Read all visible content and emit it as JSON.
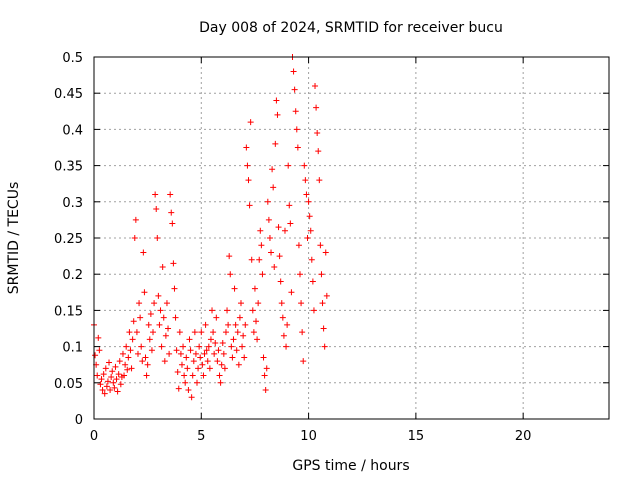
{
  "chart_data": {
    "type": "scatter",
    "title": "Day 008 of 2024, SRMTID for receiver bucu",
    "xlabel": "GPS time / hours",
    "ylabel": "SRMTID / TECUs",
    "xlim": [
      0,
      24
    ],
    "ylim": [
      0,
      0.5
    ],
    "xticks": [
      0,
      5,
      10,
      15,
      20
    ],
    "yticks": [
      0,
      0.05,
      0.1,
      0.15,
      0.2,
      0.25,
      0.3,
      0.35,
      0.4,
      0.45,
      0.5
    ],
    "xtick_labels": [
      "0",
      "5",
      "10",
      "15",
      "20"
    ],
    "ytick_labels": [
      "0",
      "0.05",
      "0.1",
      "0.15",
      "0.2",
      "0.25",
      "0.3",
      "0.35",
      "0.4",
      "0.45",
      "0.5"
    ],
    "grid": true,
    "marker": "plus",
    "color": "#ff0000",
    "points": [
      [
        0.0,
        0.13
      ],
      [
        0.05,
        0.088
      ],
      [
        0.1,
        0.075
      ],
      [
        0.15,
        0.06
      ],
      [
        0.2,
        0.112
      ],
      [
        0.25,
        0.095
      ],
      [
        0.3,
        0.048
      ],
      [
        0.35,
        0.055
      ],
      [
        0.4,
        0.04
      ],
      [
        0.45,
        0.062
      ],
      [
        0.5,
        0.035
      ],
      [
        0.55,
        0.07
      ],
      [
        0.6,
        0.045
      ],
      [
        0.65,
        0.052
      ],
      [
        0.7,
        0.078
      ],
      [
        0.75,
        0.04
      ],
      [
        0.8,
        0.058
      ],
      [
        0.85,
        0.066
      ],
      [
        0.9,
        0.05
      ],
      [
        0.95,
        0.043
      ],
      [
        1.0,
        0.072
      ],
      [
        1.05,
        0.055
      ],
      [
        1.1,
        0.038
      ],
      [
        1.15,
        0.062
      ],
      [
        1.2,
        0.08
      ],
      [
        1.25,
        0.048
      ],
      [
        1.3,
        0.058
      ],
      [
        1.35,
        0.09
      ],
      [
        1.4,
        0.06
      ],
      [
        1.45,
        0.075
      ],
      [
        1.5,
        0.1
      ],
      [
        1.55,
        0.068
      ],
      [
        1.6,
        0.085
      ],
      [
        1.65,
        0.12
      ],
      [
        1.7,
        0.095
      ],
      [
        1.75,
        0.07
      ],
      [
        1.8,
        0.11
      ],
      [
        1.85,
        0.135
      ],
      [
        1.9,
        0.25
      ],
      [
        1.95,
        0.275
      ],
      [
        2.0,
        0.12
      ],
      [
        2.05,
        0.09
      ],
      [
        2.1,
        0.16
      ],
      [
        2.15,
        0.14
      ],
      [
        2.2,
        0.1
      ],
      [
        2.25,
        0.08
      ],
      [
        2.3,
        0.23
      ],
      [
        2.35,
        0.175
      ],
      [
        2.4,
        0.085
      ],
      [
        2.45,
        0.06
      ],
      [
        2.5,
        0.075
      ],
      [
        2.55,
        0.13
      ],
      [
        2.6,
        0.11
      ],
      [
        2.65,
        0.145
      ],
      [
        2.7,
        0.095
      ],
      [
        2.75,
        0.12
      ],
      [
        2.8,
        0.16
      ],
      [
        2.85,
        0.31
      ],
      [
        2.9,
        0.29
      ],
      [
        2.95,
        0.25
      ],
      [
        3.0,
        0.17
      ],
      [
        3.05,
        0.13
      ],
      [
        3.1,
        0.15
      ],
      [
        3.15,
        0.1
      ],
      [
        3.2,
        0.21
      ],
      [
        3.25,
        0.14
      ],
      [
        3.3,
        0.08
      ],
      [
        3.35,
        0.115
      ],
      [
        3.4,
        0.16
      ],
      [
        3.45,
        0.125
      ],
      [
        3.5,
        0.09
      ],
      [
        3.55,
        0.31
      ],
      [
        3.6,
        0.285
      ],
      [
        3.65,
        0.27
      ],
      [
        3.7,
        0.215
      ],
      [
        3.75,
        0.18
      ],
      [
        3.8,
        0.14
      ],
      [
        3.85,
        0.095
      ],
      [
        3.9,
        0.065
      ],
      [
        3.95,
        0.042
      ],
      [
        4.0,
        0.12
      ],
      [
        4.05,
        0.09
      ],
      [
        4.1,
        0.075
      ],
      [
        4.15,
        0.1
      ],
      [
        4.2,
        0.06
      ],
      [
        4.25,
        0.05
      ],
      [
        4.3,
        0.085
      ],
      [
        4.35,
        0.07
      ],
      [
        4.4,
        0.04
      ],
      [
        4.45,
        0.11
      ],
      [
        4.5,
        0.095
      ],
      [
        4.55,
        0.03
      ],
      [
        4.6,
        0.06
      ],
      [
        4.65,
        0.08
      ],
      [
        4.7,
        0.12
      ],
      [
        4.75,
        0.09
      ],
      [
        4.8,
        0.05
      ],
      [
        4.85,
        0.07
      ],
      [
        4.9,
        0.1
      ],
      [
        4.95,
        0.085
      ],
      [
        5.0,
        0.12
      ],
      [
        5.05,
        0.075
      ],
      [
        5.1,
        0.06
      ],
      [
        5.15,
        0.09
      ],
      [
        5.2,
        0.13
      ],
      [
        5.25,
        0.095
      ],
      [
        5.3,
        0.08
      ],
      [
        5.35,
        0.1
      ],
      [
        5.4,
        0.07
      ],
      [
        5.45,
        0.11
      ],
      [
        5.5,
        0.15
      ],
      [
        5.55,
        0.12
      ],
      [
        5.6,
        0.09
      ],
      [
        5.65,
        0.105
      ],
      [
        5.7,
        0.14
      ],
      [
        5.75,
        0.08
      ],
      [
        5.8,
        0.095
      ],
      [
        5.85,
        0.06
      ],
      [
        5.9,
        0.05
      ],
      [
        5.95,
        0.075
      ],
      [
        6.0,
        0.105
      ],
      [
        6.05,
        0.09
      ],
      [
        6.1,
        0.07
      ],
      [
        6.15,
        0.12
      ],
      [
        6.2,
        0.15
      ],
      [
        6.25,
        0.13
      ],
      [
        6.3,
        0.225
      ],
      [
        6.35,
        0.2
      ],
      [
        6.4,
        0.1
      ],
      [
        6.45,
        0.085
      ],
      [
        6.5,
        0.11
      ],
      [
        6.55,
        0.18
      ],
      [
        6.6,
        0.13
      ],
      [
        6.65,
        0.095
      ],
      [
        6.7,
        0.12
      ],
      [
        6.75,
        0.075
      ],
      [
        6.8,
        0.14
      ],
      [
        6.85,
        0.16
      ],
      [
        6.9,
        0.1
      ],
      [
        6.95,
        0.115
      ],
      [
        7.0,
        0.085
      ],
      [
        7.05,
        0.13
      ],
      [
        7.1,
        0.375
      ],
      [
        7.15,
        0.35
      ],
      [
        7.2,
        0.33
      ],
      [
        7.25,
        0.295
      ],
      [
        7.3,
        0.41
      ],
      [
        7.35,
        0.22
      ],
      [
        7.4,
        0.15
      ],
      [
        7.45,
        0.12
      ],
      [
        7.5,
        0.18
      ],
      [
        7.55,
        0.135
      ],
      [
        7.6,
        0.11
      ],
      [
        7.65,
        0.16
      ],
      [
        7.7,
        0.22
      ],
      [
        7.75,
        0.26
      ],
      [
        7.8,
        0.24
      ],
      [
        7.85,
        0.2
      ],
      [
        7.9,
        0.085
      ],
      [
        7.95,
        0.06
      ],
      [
        8.0,
        0.04
      ],
      [
        8.05,
        0.07
      ],
      [
        8.1,
        0.3
      ],
      [
        8.15,
        0.275
      ],
      [
        8.2,
        0.25
      ],
      [
        8.25,
        0.23
      ],
      [
        8.3,
        0.345
      ],
      [
        8.35,
        0.32
      ],
      [
        8.4,
        0.21
      ],
      [
        8.45,
        0.38
      ],
      [
        8.5,
        0.44
      ],
      [
        8.55,
        0.42
      ],
      [
        8.6,
        0.265
      ],
      [
        8.65,
        0.225
      ],
      [
        8.7,
        0.19
      ],
      [
        8.75,
        0.16
      ],
      [
        8.8,
        0.14
      ],
      [
        8.85,
        0.115
      ],
      [
        8.9,
        0.26
      ],
      [
        8.95,
        0.1
      ],
      [
        9.0,
        0.13
      ],
      [
        9.05,
        0.35
      ],
      [
        9.1,
        0.295
      ],
      [
        9.15,
        0.27
      ],
      [
        9.2,
        0.175
      ],
      [
        9.25,
        0.5
      ],
      [
        9.3,
        0.48
      ],
      [
        9.35,
        0.455
      ],
      [
        9.4,
        0.425
      ],
      [
        9.45,
        0.4
      ],
      [
        9.5,
        0.375
      ],
      [
        9.55,
        0.24
      ],
      [
        9.6,
        0.2
      ],
      [
        9.65,
        0.16
      ],
      [
        9.7,
        0.12
      ],
      [
        9.75,
        0.08
      ],
      [
        9.8,
        0.35
      ],
      [
        9.85,
        0.33
      ],
      [
        9.9,
        0.31
      ],
      [
        9.95,
        0.25
      ],
      [
        10.0,
        0.3
      ],
      [
        10.05,
        0.28
      ],
      [
        10.1,
        0.26
      ],
      [
        10.15,
        0.22
      ],
      [
        10.2,
        0.19
      ],
      [
        10.25,
        0.15
      ],
      [
        10.3,
        0.46
      ],
      [
        10.35,
        0.43
      ],
      [
        10.4,
        0.395
      ],
      [
        10.45,
        0.37
      ],
      [
        10.5,
        0.33
      ],
      [
        10.55,
        0.24
      ],
      [
        10.6,
        0.2
      ],
      [
        10.65,
        0.16
      ],
      [
        10.7,
        0.125
      ],
      [
        10.75,
        0.1
      ],
      [
        10.8,
        0.23
      ],
      [
        10.85,
        0.17
      ]
    ]
  }
}
